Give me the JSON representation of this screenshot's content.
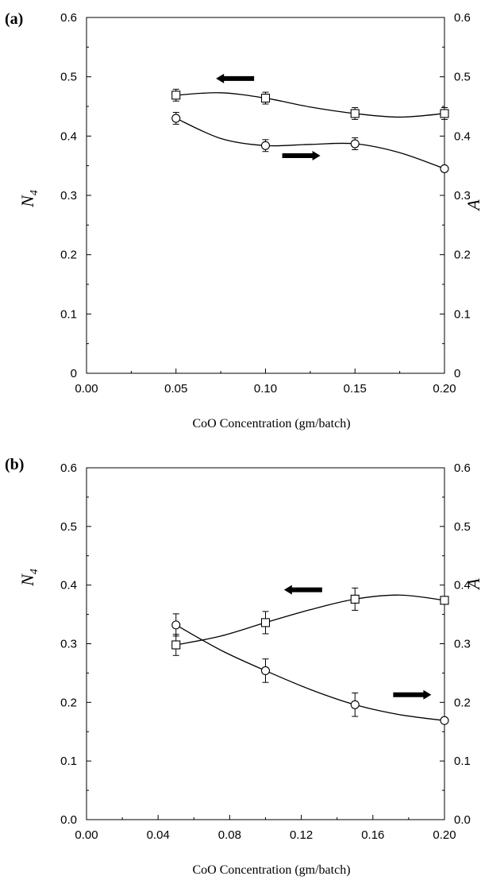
{
  "chart_data": [
    {
      "panel_label": "(a)",
      "type": "scatter",
      "xlabel": "CoO Concentration  (gm/batch)",
      "ylabel_left": "N4",
      "ylabel_right": "A",
      "xlim": [
        0.0,
        0.2
      ],
      "ylim": [
        0,
        0.6
      ],
      "x_ticks": [
        0.0,
        0.05,
        0.1,
        0.15,
        0.2
      ],
      "x_tick_labels": [
        "0.00",
        "0.05",
        "0.10",
        "0.15",
        "0.20"
      ],
      "y_ticks": [
        0,
        0.1,
        0.2,
        0.3,
        0.4,
        0.5,
        0.6
      ],
      "y_tick_labels": [
        "0",
        "0.1",
        "0.2",
        "0.3",
        "0.4",
        "0.5",
        "0.6"
      ],
      "grid": false,
      "series": [
        {
          "marker": "square",
          "axis": "left",
          "x": [
            0.05,
            0.1,
            0.15,
            0.2
          ],
          "values": [
            0.469,
            0.464,
            0.438,
            0.438
          ],
          "errors": [
            0.01,
            0.01,
            0.01,
            0.01
          ],
          "curve": [
            [
              0.05,
              0.469
            ],
            [
              0.075,
              0.473
            ],
            [
              0.1,
              0.464
            ],
            [
              0.125,
              0.449
            ],
            [
              0.15,
              0.438
            ],
            [
              0.175,
              0.432
            ],
            [
              0.2,
              0.438
            ]
          ]
        },
        {
          "marker": "circle",
          "axis": "right",
          "x": [
            0.05,
            0.1,
            0.15,
            0.2
          ],
          "values": [
            0.43,
            0.384,
            0.387,
            0.345
          ],
          "errors": [
            0.01,
            0.01,
            0.01,
            0.0
          ],
          "curve": [
            [
              0.05,
              0.43
            ],
            [
              0.075,
              0.396
            ],
            [
              0.1,
              0.384
            ],
            [
              0.125,
              0.386
            ],
            [
              0.15,
              0.387
            ],
            [
              0.175,
              0.372
            ],
            [
              0.2,
              0.345
            ]
          ]
        }
      ],
      "annotations": [
        {
          "type": "arrow",
          "direction": "left",
          "series": "square",
          "x": 0.083,
          "y": 0.497
        },
        {
          "type": "arrow",
          "direction": "right",
          "series": "circle",
          "x": 0.12,
          "y": 0.367
        }
      ]
    },
    {
      "panel_label": "(b)",
      "type": "scatter",
      "xlabel": "CoO Concentration  (gm/batch)",
      "ylabel_left": "N4",
      "ylabel_right": "A",
      "xlim": [
        0.0,
        0.2
      ],
      "ylim": [
        0.0,
        0.6
      ],
      "x_ticks": [
        0.0,
        0.04,
        0.08,
        0.12,
        0.16,
        0.2
      ],
      "x_tick_labels": [
        "0.00",
        "0.04",
        "0.08",
        "0.12",
        "0.16",
        "0.20"
      ],
      "y_ticks": [
        0,
        0.1,
        0.2,
        0.3,
        0.4,
        0.5,
        0.6
      ],
      "y_tick_labels": [
        "0.0",
        "0.1",
        "0.2",
        "0.3",
        "0.4",
        "0.5",
        "0.6"
      ],
      "grid": false,
      "series": [
        {
          "marker": "square",
          "axis": "left",
          "x": [
            0.05,
            0.1,
            0.15,
            0.2
          ],
          "values": [
            0.298,
            0.336,
            0.376,
            0.374
          ],
          "errors": [
            0.018,
            0.019,
            0.019,
            0.0
          ],
          "curve": [
            [
              0.05,
              0.298
            ],
            [
              0.075,
              0.313
            ],
            [
              0.1,
              0.336
            ],
            [
              0.125,
              0.358
            ],
            [
              0.15,
              0.376
            ],
            [
              0.175,
              0.383
            ],
            [
              0.2,
              0.374
            ]
          ]
        },
        {
          "marker": "circle",
          "axis": "right",
          "x": [
            0.05,
            0.1,
            0.15,
            0.2
          ],
          "values": [
            0.332,
            0.254,
            0.196,
            0.169
          ],
          "errors": [
            0.019,
            0.02,
            0.02,
            0.0
          ],
          "curve": [
            [
              0.05,
              0.332
            ],
            [
              0.075,
              0.289
            ],
            [
              0.1,
              0.254
            ],
            [
              0.125,
              0.222
            ],
            [
              0.15,
              0.196
            ],
            [
              0.175,
              0.179
            ],
            [
              0.2,
              0.169
            ]
          ]
        }
      ],
      "annotations": [
        {
          "type": "arrow",
          "direction": "left",
          "series": "square",
          "x": 0.121,
          "y": 0.392
        },
        {
          "type": "arrow",
          "direction": "right",
          "series": "circle",
          "x": 0.182,
          "y": 0.213
        }
      ]
    }
  ]
}
